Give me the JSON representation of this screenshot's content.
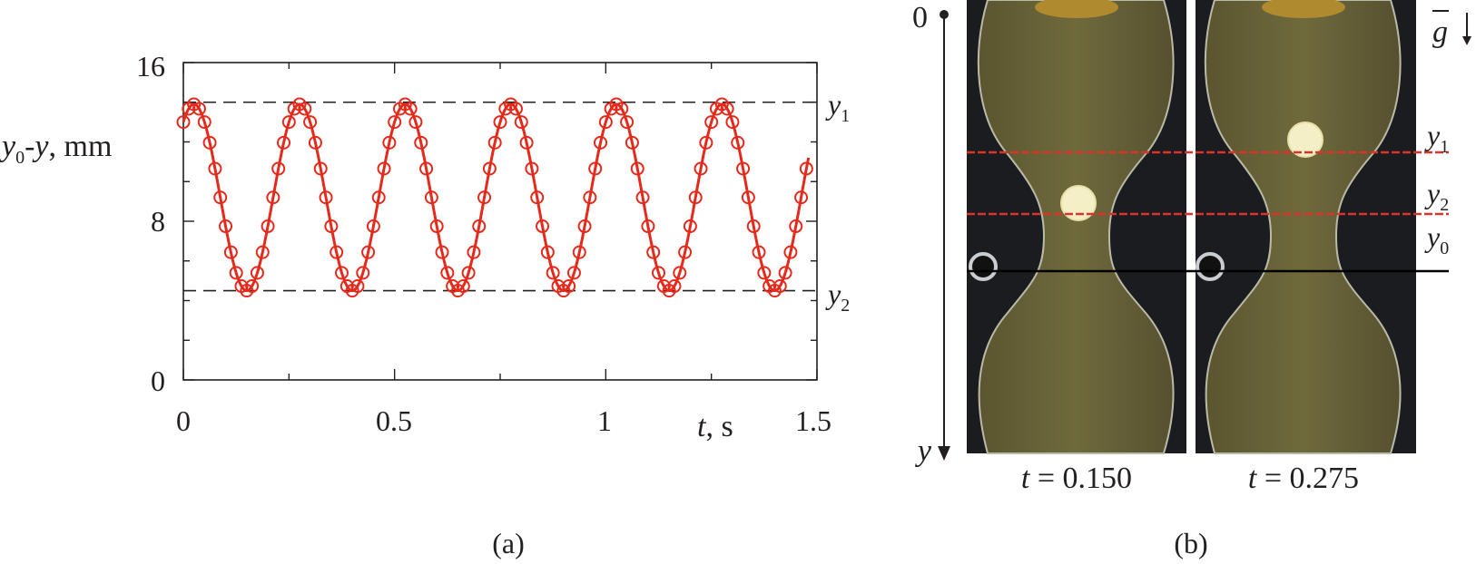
{
  "panel_a": {
    "caption": "(a)",
    "ylabel_parts": [
      "y",
      "0",
      "-",
      "y",
      ", mm"
    ],
    "xlabel_parts": [
      "t",
      ", s"
    ],
    "ref_labels": [
      {
        "main": "y",
        "sub": "1"
      },
      {
        "main": "y",
        "sub": "2"
      }
    ]
  },
  "panel_b": {
    "caption": "(b)",
    "axis_origin": "0",
    "axis_label": "y",
    "gravity_label": "g",
    "lines": [
      {
        "main": "y",
        "sub": "1",
        "color": "#d9342b"
      },
      {
        "main": "y",
        "sub": "2",
        "color": "#d9342b"
      },
      {
        "main": "y",
        "sub": "0",
        "color": "#000000"
      }
    ],
    "frames": [
      {
        "label_var": "t",
        "label_value": "= 0.150",
        "ball_y_mm": 8.6
      },
      {
        "label_var": "t",
        "label_value": "= 0.275",
        "ball_y_mm": 12.5
      }
    ]
  },
  "chart_data": {
    "type": "line",
    "xlim": [
      0,
      1.5
    ],
    "ylim": [
      0,
      16
    ],
    "xticks": [
      "0",
      "0.5",
      "1",
      "1.5"
    ],
    "yticks": [
      "0",
      "8",
      "16"
    ],
    "ref_lines_y": [
      14.0,
      4.5
    ],
    "grid": false,
    "series": [
      {
        "style": "line+markers",
        "color": "#e52a1c",
        "marker": "open-circle",
        "params": {
          "center": 9.2,
          "amplitude": 4.7,
          "period": 0.25,
          "peak_t": 0.025
        },
        "x": [
          0.0,
          0.0125,
          0.025,
          0.0375,
          0.05,
          0.0625,
          0.075,
          0.0875,
          0.1,
          0.1125,
          0.125,
          0.1375,
          0.15,
          0.1625,
          0.175,
          0.1875,
          0.2,
          0.2125,
          0.225,
          0.2375,
          0.25,
          0.2625,
          0.275,
          0.2875,
          0.3,
          0.3125,
          0.325,
          0.3375,
          0.35,
          0.3625,
          0.375,
          0.3875,
          0.4,
          0.4125,
          0.425,
          0.4375,
          0.45,
          0.4625,
          0.475,
          0.4875,
          0.5,
          0.5125,
          0.525,
          0.5375,
          0.55,
          0.5625,
          0.575,
          0.5875,
          0.6,
          0.6125,
          0.625,
          0.6375,
          0.65,
          0.6625,
          0.675,
          0.6875,
          0.7,
          0.7125,
          0.725,
          0.7375,
          0.75,
          0.7625,
          0.775,
          0.7875,
          0.8,
          0.8125,
          0.825,
          0.8375,
          0.85,
          0.8625,
          0.875,
          0.8875,
          0.9,
          0.9125,
          0.925,
          0.9375,
          0.95,
          0.9625,
          0.975,
          0.9875,
          1.0,
          1.0125,
          1.025,
          1.0375,
          1.05,
          1.0625,
          1.075,
          1.0875,
          1.1,
          1.1125,
          1.125,
          1.1375,
          1.15,
          1.1625,
          1.175,
          1.1875,
          1.2,
          1.2125,
          1.225,
          1.2375,
          1.25,
          1.2625,
          1.275,
          1.2875,
          1.3,
          1.3125,
          1.325,
          1.3375,
          1.35,
          1.3625,
          1.375,
          1.3875,
          1.4,
          1.4125,
          1.425,
          1.4375,
          1.45,
          1.4625,
          1.475
        ]
      }
    ]
  }
}
